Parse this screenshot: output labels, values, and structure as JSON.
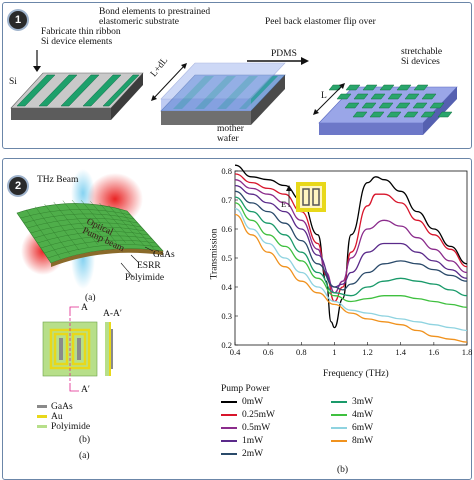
{
  "panel1": {
    "badge": "1",
    "step1_label": "Fabricate thin ribbon\nSi device elements",
    "step2_label": "Bond elements to prestrained\nelastomeric substrate",
    "step3_label": "Peel back elastomer flip over",
    "si": "Si",
    "pdms": "PDMS",
    "mother_wafer": "mother\nwafer",
    "l_dl": "L+dL",
    "l": "L",
    "stretchable": "stretchable\nSi devices"
  },
  "panel2": {
    "badge": "2",
    "thz_beam": "THz Beam",
    "optical_pump": "Optical\nPump beam",
    "gaas": "GaAs",
    "esrr": "ESRR",
    "polyimide": "Polyimide",
    "caption_a": "(a)",
    "caption_b": "(b)",
    "caption_a2": "(a)",
    "caption_b2": "(b)",
    "section_a": "A",
    "section_a_prime": "A′",
    "section_aa": "A-A′",
    "legend_materials": [
      "GaAs",
      "Au",
      "Polyimide"
    ],
    "inset_e": "E",
    "pump_title": "Pump Power",
    "pump_legend": [
      "0mW",
      "0.25mW",
      "0.5mW",
      "1mW",
      "2mW",
      "3mW",
      "4mW",
      "6mW",
      "8mW"
    ],
    "colors": {
      "gaas": "#8a8a8a",
      "au": "#e8d81a",
      "polyimide": "#b7df8a",
      "panel_border": "#6b86a8"
    }
  },
  "chart_data": {
    "type": "line",
    "xlabel": "Frequency (THz)",
    "ylabel": "Transmission",
    "xlim": [
      0.4,
      1.8
    ],
    "ylim": [
      0.2,
      0.8
    ],
    "xticks": [
      "0.4",
      "0.6",
      "0.8",
      "1",
      "1.2",
      "1.4",
      "1.6",
      "1.8"
    ],
    "yticks": [
      "0.2",
      "0.3",
      "0.4",
      "0.5",
      "0.6",
      "0.7",
      "0.8"
    ],
    "grid": false,
    "series": [
      {
        "name": "0mW",
        "color": "#000000",
        "x": [
          0.4,
          0.5,
          0.6,
          0.7,
          0.8,
          0.9,
          0.95,
          0.98,
          1.0,
          1.05,
          1.1,
          1.2,
          1.25,
          1.3,
          1.4,
          1.5,
          1.6,
          1.7,
          1.8
        ],
        "y": [
          0.82,
          0.78,
          0.77,
          0.75,
          0.7,
          0.58,
          0.42,
          0.28,
          0.26,
          0.36,
          0.58,
          0.76,
          0.78,
          0.77,
          0.73,
          0.66,
          0.6,
          0.54,
          0.48
        ]
      },
      {
        "name": "0.25mW",
        "color": "#d8152b",
        "x": [
          0.4,
          0.5,
          0.6,
          0.7,
          0.8,
          0.9,
          0.95,
          1.0,
          1.05,
          1.1,
          1.2,
          1.25,
          1.3,
          1.4,
          1.5,
          1.6,
          1.7,
          1.8
        ],
        "y": [
          0.79,
          0.76,
          0.74,
          0.72,
          0.66,
          0.55,
          0.44,
          0.35,
          0.4,
          0.52,
          0.68,
          0.72,
          0.72,
          0.69,
          0.63,
          0.58,
          0.53,
          0.47
        ]
      },
      {
        "name": "0.5mW",
        "color": "#8b2c8c",
        "x": [
          0.4,
          0.5,
          0.6,
          0.7,
          0.8,
          0.9,
          0.95,
          1.0,
          1.05,
          1.1,
          1.2,
          1.3,
          1.4,
          1.5,
          1.6,
          1.7,
          1.8
        ],
        "y": [
          0.77,
          0.74,
          0.72,
          0.69,
          0.63,
          0.53,
          0.45,
          0.38,
          0.42,
          0.5,
          0.6,
          0.63,
          0.61,
          0.57,
          0.53,
          0.49,
          0.45
        ]
      },
      {
        "name": "1mW",
        "color": "#5a2a8a",
        "x": [
          0.4,
          0.5,
          0.6,
          0.7,
          0.8,
          0.9,
          1.0,
          1.05,
          1.1,
          1.2,
          1.3,
          1.4,
          1.5,
          1.6,
          1.7,
          1.8
        ],
        "y": [
          0.75,
          0.72,
          0.69,
          0.66,
          0.6,
          0.51,
          0.4,
          0.41,
          0.45,
          0.52,
          0.55,
          0.55,
          0.52,
          0.49,
          0.46,
          0.43
        ]
      },
      {
        "name": "2mW",
        "color": "#2a4a6a",
        "x": [
          0.4,
          0.5,
          0.6,
          0.7,
          0.8,
          0.9,
          1.0,
          1.05,
          1.1,
          1.2,
          1.3,
          1.4,
          1.5,
          1.6,
          1.7,
          1.8
        ],
        "y": [
          0.73,
          0.69,
          0.66,
          0.62,
          0.56,
          0.48,
          0.4,
          0.39,
          0.41,
          0.45,
          0.48,
          0.49,
          0.48,
          0.46,
          0.44,
          0.42
        ]
      },
      {
        "name": "3mW",
        "color": "#1a9a6a",
        "x": [
          0.4,
          0.5,
          0.6,
          0.7,
          0.8,
          0.9,
          1.0,
          1.1,
          1.2,
          1.3,
          1.4,
          1.5,
          1.6,
          1.7,
          1.8
        ],
        "y": [
          0.71,
          0.66,
          0.62,
          0.58,
          0.52,
          0.45,
          0.38,
          0.37,
          0.4,
          0.42,
          0.43,
          0.42,
          0.41,
          0.39,
          0.37
        ]
      },
      {
        "name": "4mW",
        "color": "#3fc03f",
        "x": [
          0.4,
          0.5,
          0.6,
          0.7,
          0.8,
          0.9,
          1.0,
          1.1,
          1.2,
          1.3,
          1.4,
          1.5,
          1.6,
          1.7,
          1.8
        ],
        "y": [
          0.69,
          0.63,
          0.58,
          0.54,
          0.49,
          0.43,
          0.37,
          0.35,
          0.36,
          0.37,
          0.37,
          0.36,
          0.35,
          0.34,
          0.33
        ]
      },
      {
        "name": "6mW",
        "color": "#8fd3e0",
        "x": [
          0.4,
          0.5,
          0.6,
          0.7,
          0.8,
          0.9,
          1.0,
          1.1,
          1.2,
          1.3,
          1.4,
          1.5,
          1.6,
          1.7,
          1.8
        ],
        "y": [
          0.67,
          0.6,
          0.55,
          0.5,
          0.45,
          0.4,
          0.35,
          0.32,
          0.31,
          0.3,
          0.29,
          0.28,
          0.27,
          0.26,
          0.25
        ]
      },
      {
        "name": "8mW",
        "color": "#f0921e",
        "x": [
          0.4,
          0.5,
          0.6,
          0.7,
          0.8,
          0.9,
          1.0,
          1.1,
          1.2,
          1.3,
          1.4,
          1.5,
          1.6,
          1.7,
          1.8
        ],
        "y": [
          0.65,
          0.58,
          0.52,
          0.47,
          0.42,
          0.38,
          0.34,
          0.31,
          0.29,
          0.28,
          0.27,
          0.25,
          0.23,
          0.22,
          0.21
        ]
      }
    ]
  }
}
